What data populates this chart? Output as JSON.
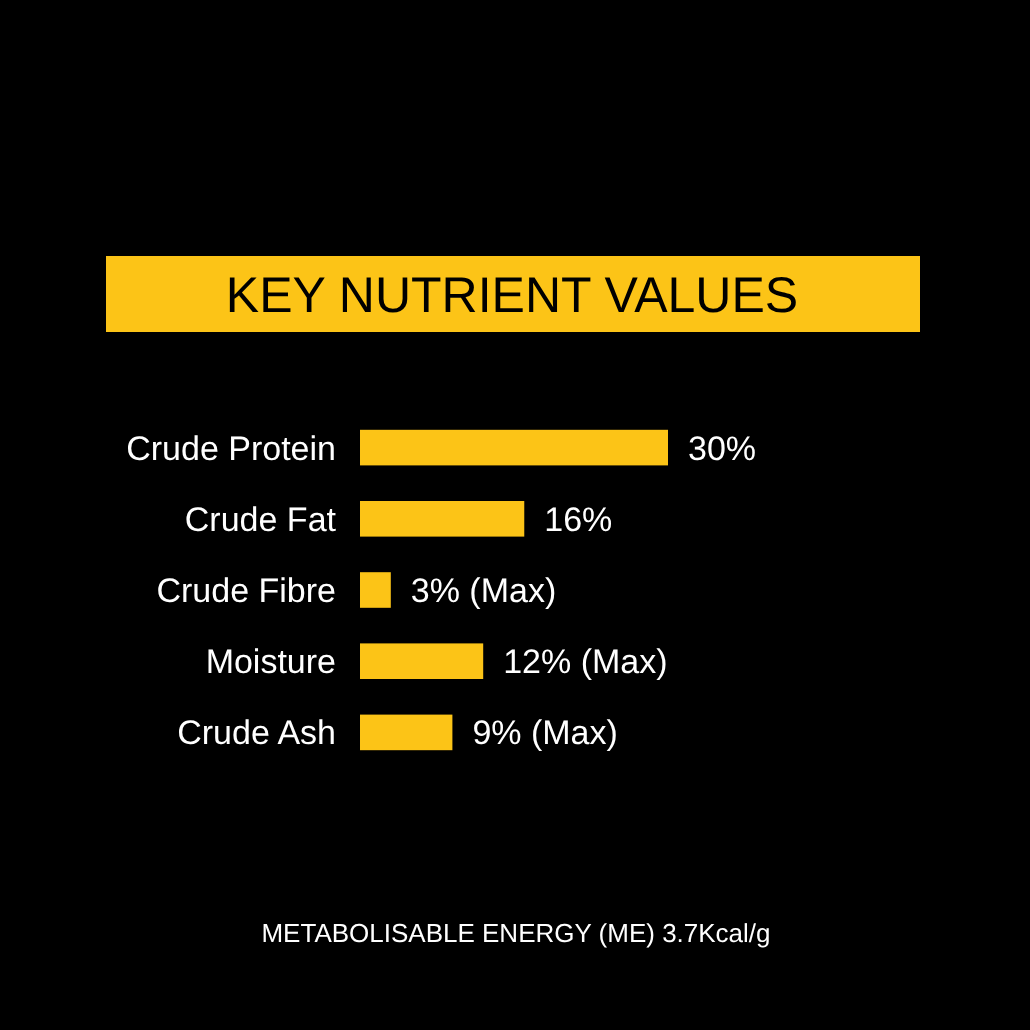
{
  "chart_data": {
    "type": "bar",
    "orientation": "horizontal",
    "title": "KEY NUTRIENT VALUES",
    "categories": [
      "Crude Protein",
      "Crude Fat",
      "Crude Fibre",
      "Moisture",
      "Crude Ash"
    ],
    "values": [
      30,
      16,
      3,
      12,
      9
    ],
    "color": "#fcc417",
    "value_labels": [
      "30%",
      "16%",
      "3% (Max)",
      "12% (Max)",
      "9% (Max)"
    ],
    "annotations": [
      "METABOLISABLE ENERGY (ME) 3.7Kcal/g"
    ]
  }
}
